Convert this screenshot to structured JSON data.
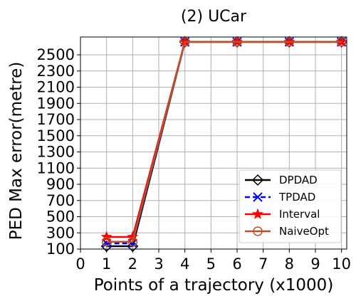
{
  "chart_data": {
    "type": "line",
    "title": "(2) UCar",
    "xlabel": "Points of a trajectory (x1000)",
    "ylabel": "PED Max error(metre)",
    "xlim": [
      0,
      10.2
    ],
    "ylim": [
      100,
      2720
    ],
    "xticks": [
      0,
      1,
      2,
      3,
      4,
      5,
      6,
      7,
      8,
      9,
      10
    ],
    "yticks": [
      100,
      300,
      500,
      700,
      900,
      1100,
      1300,
      1500,
      1700,
      1900,
      2100,
      2300,
      2500
    ],
    "grid": true,
    "legend_position": "lower-right",
    "series": [
      {
        "name": "DPDAD",
        "color": "#000000",
        "marker": "diamond",
        "line": "solid",
        "x": [
          1,
          2,
          4,
          6,
          8,
          10
        ],
        "y": [
          135,
          135,
          2660,
          2660,
          2660,
          2660
        ]
      },
      {
        "name": "TPDAD",
        "color": "#0000ff",
        "marker": "x",
        "line": "dashed",
        "x": [
          1,
          2,
          4,
          6,
          8,
          10
        ],
        "y": [
          170,
          170,
          2660,
          2660,
          2660,
          2660
        ]
      },
      {
        "name": "Interval",
        "color": "#ff0000",
        "marker": "star",
        "line": "solid",
        "x": [
          1,
          2,
          4,
          6,
          8,
          10
        ],
        "y": [
          250,
          250,
          2660,
          2660,
          2660,
          2660
        ]
      },
      {
        "name": "NaiveOpt",
        "color": "#b5532a",
        "marker": "circle",
        "line": "solid",
        "x": [
          1,
          2,
          4,
          6,
          8,
          10
        ],
        "y": [
          190,
          190,
          2660,
          2660,
          2660,
          2660
        ]
      }
    ]
  }
}
